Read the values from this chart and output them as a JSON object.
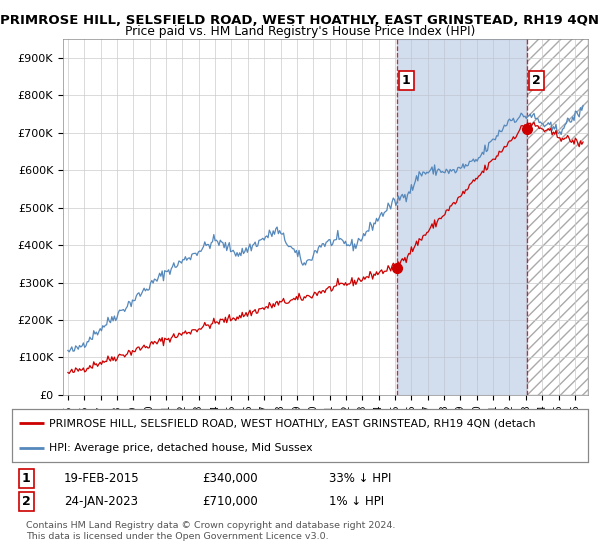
{
  "title1": "PRIMROSE HILL, SELSFIELD ROAD, WEST HOATHLY, EAST GRINSTEAD, RH19 4QN",
  "title2": "Price paid vs. HM Land Registry's House Price Index (HPI)",
  "ylim": [
    0,
    950000
  ],
  "yticks": [
    0,
    100000,
    200000,
    300000,
    400000,
    500000,
    600000,
    700000,
    800000,
    900000
  ],
  "ytick_labels": [
    "£0",
    "£100K",
    "£200K",
    "£300K",
    "£400K",
    "£500K",
    "£600K",
    "£700K",
    "£800K",
    "£900K"
  ],
  "xlim_start": 1994.7,
  "xlim_end": 2026.8,
  "background_color": "#ffffff",
  "plot_bg_color": "#e8f0f8",
  "grid_color": "#cccccc",
  "red_line_color": "#cc0000",
  "blue_line_color": "#5588bb",
  "purchase1_year": 2015.12,
  "purchase1_price": 340000,
  "purchase2_year": 2023.07,
  "purchase2_price": 710000,
  "legend_red_label": "PRIMROSE HILL, SELSFIELD ROAD, WEST HOATHLY, EAST GRINSTEAD, RH19 4QN (detach",
  "legend_blue_label": "HPI: Average price, detached house, Mid Sussex",
  "note1_date": "19-FEB-2015",
  "note1_price": "£340,000",
  "note1_hpi": "33% ↓ HPI",
  "note2_date": "24-JAN-2023",
  "note2_price": "£710,000",
  "note2_hpi": "1% ↓ HPI",
  "footer": "Contains HM Land Registry data © Crown copyright and database right 2024.\nThis data is licensed under the Open Government Licence v3.0."
}
